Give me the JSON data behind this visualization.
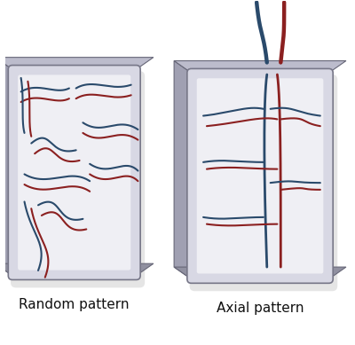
{
  "figsize": [
    4.0,
    3.89
  ],
  "dpi": 100,
  "bg_color": "#ffffff",
  "artery_color": "#8b2020",
  "vein_color": "#2a4a6b",
  "label_fontsize": 11,
  "label1": "Random pattern",
  "label2": "Axial pattern"
}
